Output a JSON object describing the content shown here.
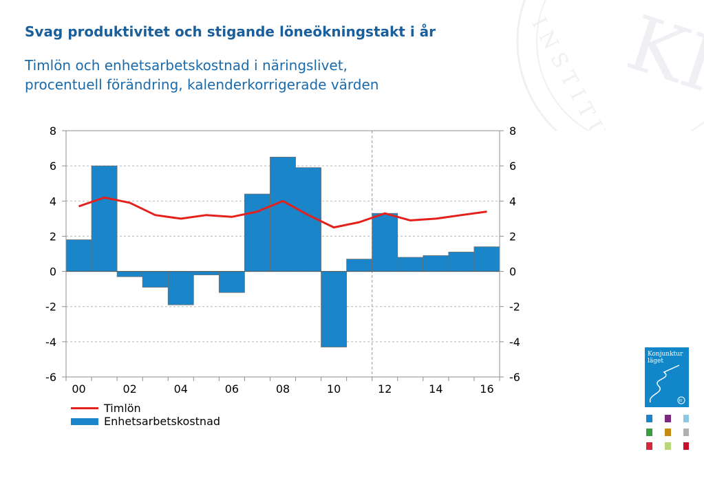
{
  "title": "Svag produktivitet och stigande löneökningstakt i år",
  "subtitle_lines": [
    "Timlön och enhetsarbetskostnad i näringslivet,",
    "procentuell förändring, kalenderkorrigerade värden"
  ],
  "watermark_text": "INSTITUTET",
  "watermark_logo": "KI",
  "report_cover": {
    "title_lines": [
      "Konjunktur",
      "läget"
    ],
    "seal": "KI"
  },
  "colors": {
    "title": "#1b5f9a",
    "subtitle": "#1b6aa9",
    "bar": "#1a85c8",
    "line": "#e3201b",
    "cover": "#1187c9",
    "thumbnails": [
      "#1a85c8",
      "#7a2a7e",
      "#8ec6e6",
      "#3e9a45",
      "#c58a12",
      "#b0b0b0",
      "#d7263d",
      "#b8d77a",
      "#c8102e"
    ]
  },
  "chart_data": {
    "type": "bar",
    "title": "Svag produktivitet och stigande löneökningstakt i år",
    "subtitle": "Timlön och enhetsarbetskostnad i näringslivet, procentuell förändring, kalenderkorrigerade värden",
    "x": [
      2000,
      2001,
      2002,
      2003,
      2004,
      2005,
      2006,
      2007,
      2008,
      2009,
      2010,
      2011,
      2012,
      2013,
      2014,
      2015,
      2016
    ],
    "x_tick_labels": [
      "00",
      "02",
      "04",
      "06",
      "08",
      "10",
      "12",
      "14",
      "16"
    ],
    "x_tick_years": [
      2000,
      2002,
      2004,
      2006,
      2008,
      2010,
      2012,
      2014,
      2016
    ],
    "forecast_from": 2012,
    "ylim": [
      -6,
      8
    ],
    "y_ticks": [
      8,
      6,
      4,
      2,
      0,
      -2,
      -4,
      -6
    ],
    "y_tick_labels": [
      "8",
      "6",
      "4",
      "2",
      "0",
      "-2",
      "-4",
      "-6"
    ],
    "grid": true,
    "legend_position": "bottom-left",
    "series": [
      {
        "name": "Timlön",
        "type": "line",
        "values": [
          3.7,
          4.2,
          3.9,
          3.2,
          3.0,
          3.2,
          3.1,
          3.4,
          4.0,
          3.2,
          2.5,
          2.8,
          3.3,
          2.9,
          3.0,
          3.2,
          3.4
        ]
      },
      {
        "name": "Enhetsarbetskostnad",
        "type": "bar",
        "values": [
          1.8,
          6.0,
          -0.3,
          -0.9,
          -1.9,
          -0.2,
          -1.2,
          4.4,
          6.5,
          5.9,
          -4.3,
          0.7,
          3.3,
          0.8,
          0.9,
          1.1,
          1.4
        ]
      }
    ]
  }
}
